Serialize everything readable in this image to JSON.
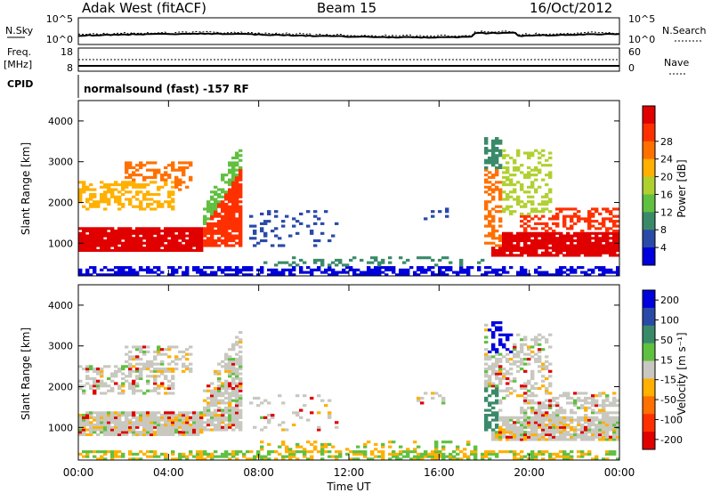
{
  "header": {
    "station": "Adak West (fitACF)",
    "beam": "Beam 15",
    "date": "16/Oct/2012"
  },
  "panel_top": {
    "left_label_1": "N.Sky",
    "left_ticks_1": [
      "10^5",
      "10^0"
    ],
    "right_ticks_1": [
      "10^5",
      "10^0"
    ],
    "right_label_1": "N.Search",
    "left_label_2": "Freq.",
    "left_label_2b": "[MHz]",
    "left_ticks_2": [
      "18",
      "8"
    ],
    "right_ticks_2": [
      "60",
      "0"
    ],
    "right_label_2": "Nave",
    "cpid_label": "CPID",
    "cpid_text": "normalsound (fast) -157 RF"
  },
  "x_axis": {
    "label": "Time UT",
    "ticks": [
      "00:00",
      "04:00",
      "08:00",
      "12:00",
      "16:00",
      "20:00",
      "00:00"
    ]
  },
  "colors": {
    "power": [
      "#0000dd",
      "#2a4aa8",
      "#3a8a6a",
      "#60c040",
      "#b0d030",
      "#ffb000",
      "#ff7000",
      "#ff3000",
      "#e00000"
    ],
    "velocity": [
      "#0000dd",
      "#2a4aa8",
      "#3a8a6a",
      "#60c040",
      "#c8c8c0",
      "#ffb000",
      "#ff7000",
      "#ff3000",
      "#e00000"
    ]
  },
  "chart_data": [
    {
      "type": "heatmap",
      "name_panel": "power",
      "ylabel": "Slant Range [km]",
      "xlabel": "Time UT",
      "ylim": [
        200,
        4500
      ],
      "y_ticks": [
        1000,
        2000,
        3000,
        4000
      ],
      "colorbar_label": "Power [dB]",
      "colorbar_ticks": [
        "4",
        "8",
        "12",
        "16",
        "20",
        "24",
        "28"
      ]
    },
    {
      "type": "heatmap",
      "name_panel": "velocity",
      "ylabel": "Slant Range [km]",
      "xlabel": "Time UT",
      "ylim": [
        200,
        4500
      ],
      "y_ticks": [
        1000,
        2000,
        3000,
        4000
      ],
      "colorbar_label": "Velocity [m s⁻¹]",
      "colorbar_ticks": [
        "200",
        "100",
        "50",
        "15",
        "-15",
        "-50",
        "-100",
        "-200"
      ]
    }
  ]
}
